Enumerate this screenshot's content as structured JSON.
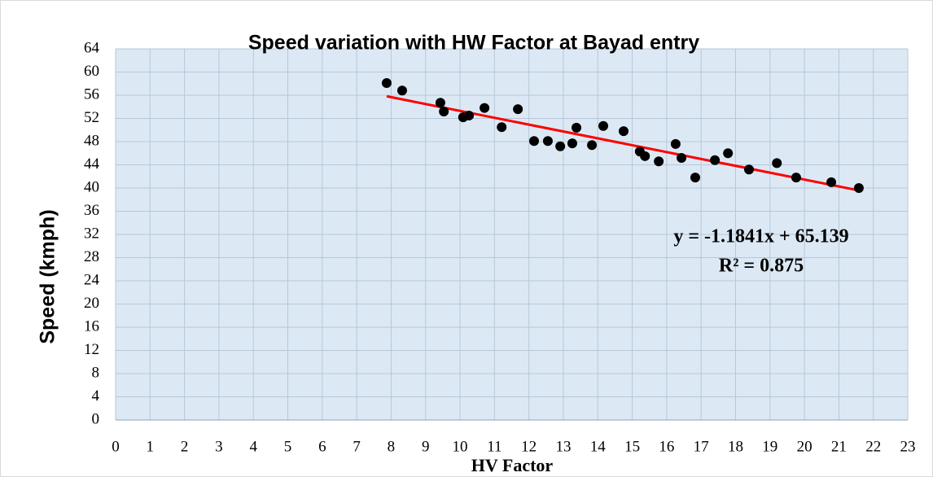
{
  "chart_data": {
    "type": "scatter",
    "title": "Speed variation with HW Factor at Bayad entry",
    "x_label": "HV Factor",
    "y_label": "Speed (kmph)",
    "annotations": [
      "y = -1.1841x + 65.139",
      "R² = 0.875"
    ],
    "series": [
      {
        "name": "Speed",
        "color": "#000000",
        "x": [
          7.87,
          8.32,
          9.43,
          9.53,
          10.09,
          10.26,
          10.71,
          11.21,
          11.68,
          12.15,
          12.55,
          12.91,
          13.26,
          13.38,
          13.83,
          14.16,
          14.75,
          15.22,
          15.37,
          15.77,
          16.26,
          16.43,
          16.83,
          17.4,
          17.78,
          18.39,
          19.2,
          19.76,
          20.78,
          21.58
        ],
        "values": [
          58.1,
          56.8,
          54.7,
          53.2,
          52.2,
          52.5,
          53.8,
          50.5,
          53.6,
          48.1,
          48.1,
          47.2,
          47.7,
          50.4,
          47.4,
          50.7,
          49.8,
          46.3,
          45.5,
          44.6,
          47.6,
          45.2,
          41.8,
          44.8,
          46.0,
          43.2,
          44.3,
          41.8,
          41.0,
          40.0
        ]
      }
    ],
    "trendline": {
      "color": "#ff0000",
      "x": [
        7.87,
        21.58
      ],
      "values": [
        55.82,
        39.59
      ]
    },
    "xlim": [
      0,
      23
    ],
    "xticks": [
      0,
      1,
      2,
      3,
      4,
      5,
      6,
      7,
      8,
      9,
      10,
      11,
      12,
      13,
      14,
      15,
      16,
      17,
      18,
      19,
      20,
      21,
      22,
      23
    ],
    "ylim": [
      0,
      64
    ],
    "yticks": [
      0,
      4,
      8,
      12,
      16,
      20,
      24,
      28,
      32,
      36,
      40,
      44,
      48,
      52,
      56,
      60,
      64
    ],
    "grid": true
  }
}
